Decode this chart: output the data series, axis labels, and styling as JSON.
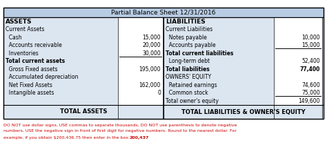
{
  "title": "Partial Balance Sheet 12/31/2016",
  "header_bg": "#b8cce4",
  "cell_bg": "#dce6f1",
  "white_bg": "#ffffff",
  "table_border": "#000000",
  "text_color": "#000000",
  "red_text": "#cc0000",
  "left_col_header": "ASSETS",
  "right_col_header": "LIABILITIES",
  "left_footer": "TOTAL ASSETS",
  "right_footer": "TOTAL LIABILITIES & OWNER'S EQUITY",
  "rows_left": [
    [
      "Current Assets",
      "",
      false,
      false
    ],
    [
      "  Cash",
      "15,000",
      false,
      false
    ],
    [
      "  Accounts receivable",
      "20,000",
      false,
      false
    ],
    [
      "  Inventories",
      "30,000",
      false,
      true
    ],
    [
      "Total current assets",
      "",
      true,
      false
    ],
    [
      "  Gross Fixed assets",
      "195,000",
      false,
      false
    ],
    [
      "  Accumulated depreciation",
      "",
      false,
      false
    ],
    [
      "  Net Fixed Assets",
      "162,000",
      false,
      false
    ],
    [
      "  Intangible assets",
      "0",
      false,
      false
    ]
  ],
  "rows_right": [
    [
      "Current Liabilities",
      "",
      false,
      false
    ],
    [
      "  Notes payable",
      "10,000",
      false,
      false
    ],
    [
      "  Accounts payable",
      "15,000",
      false,
      true
    ],
    [
      "Total current liabilities",
      "",
      true,
      false
    ],
    [
      "  Long-term debt",
      "52,400",
      false,
      false
    ],
    [
      "Total liabilities",
      "77,400",
      true,
      false
    ],
    [
      "OWNERS' EQUITY",
      "",
      false,
      false
    ],
    [
      "  Retained earnings",
      "74,600",
      false,
      false
    ],
    [
      "  Common stock",
      "75,000",
      false,
      true
    ],
    [
      "Total owner's equity",
      "149,600",
      false,
      false
    ]
  ],
  "note_line1": "DO NOT use dollar signs, USE commas to separate thousands, DO NOT use parenthesis to denote negative",
  "note_line2": "numbers, USE the negative sign in front of first digit for negative numbers. Round to the nearest dollar. For",
  "note_line3a": "example, if you obtain $200,436.75 then enter in the box: ",
  "note_line3b": "200,437"
}
